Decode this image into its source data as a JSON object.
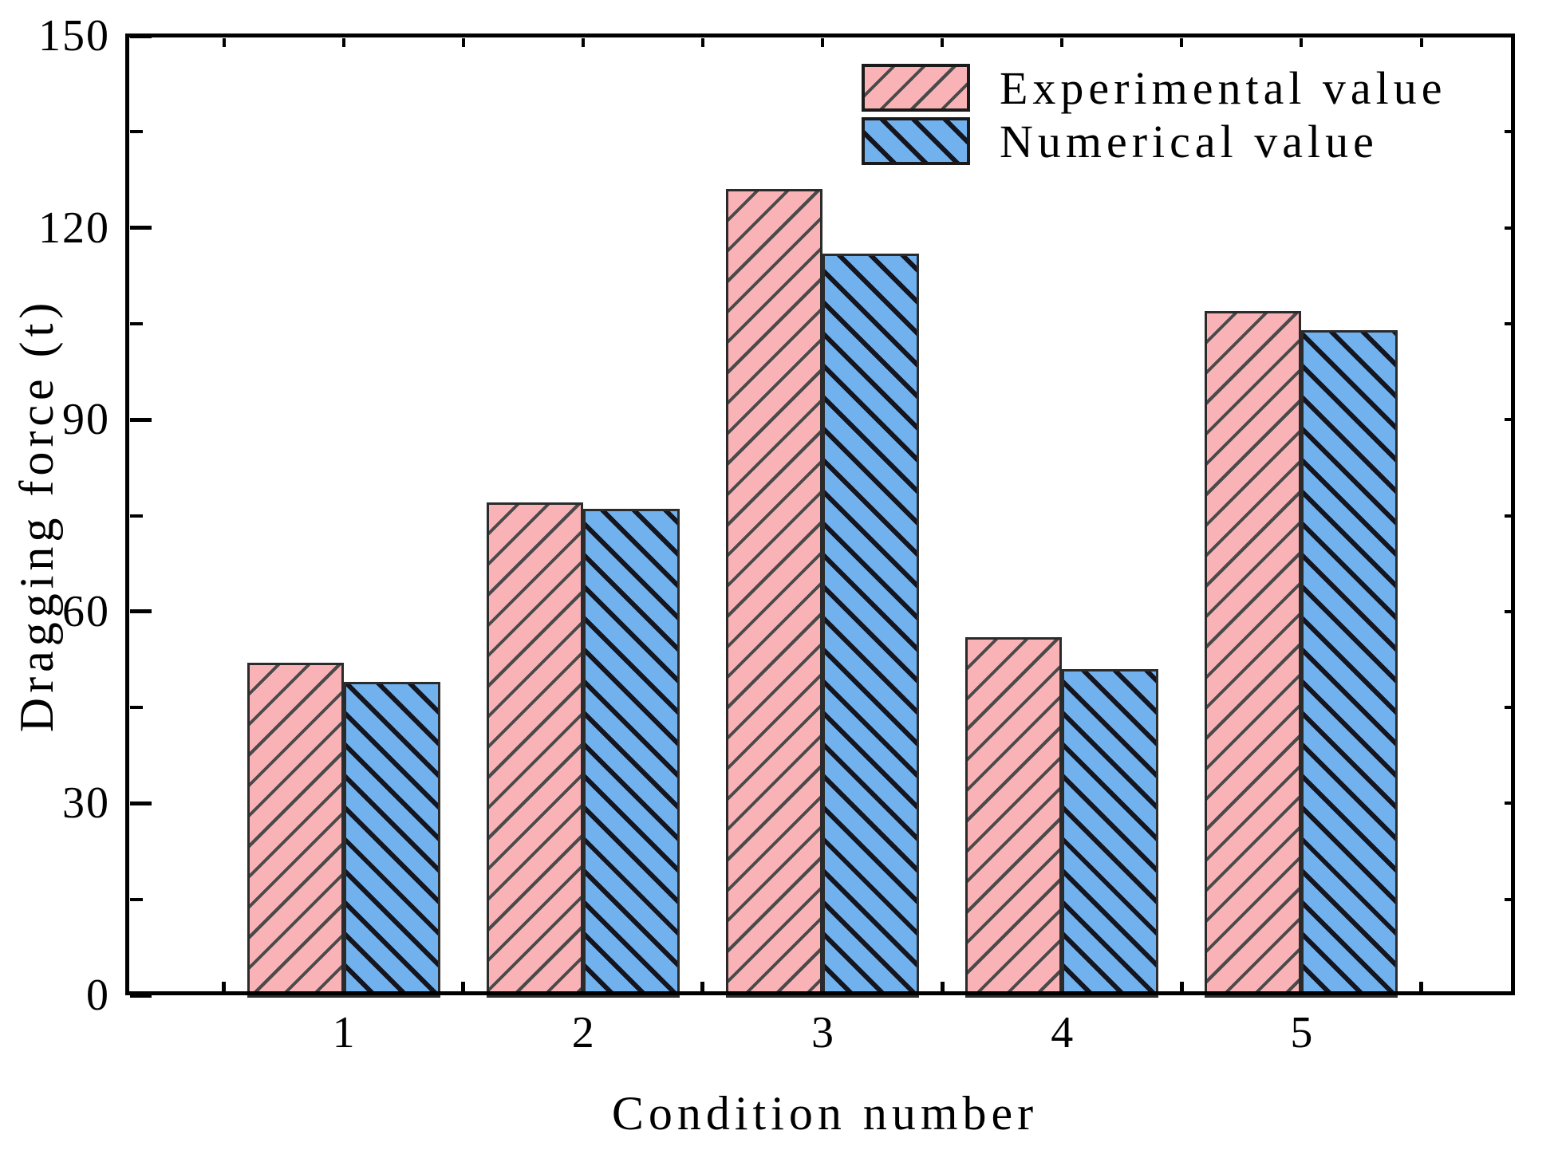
{
  "chart_data": {
    "type": "bar",
    "title": "",
    "categories": [
      "1",
      "2",
      "3",
      "4",
      "5"
    ],
    "series": [
      {
        "name": "Experimental value",
        "values": [
          52,
          77,
          126,
          56,
          107
        ],
        "fill": "#f9b3b6",
        "hatch": "/",
        "hatch_color": "#4a4a4a"
      },
      {
        "name": "Numerical value",
        "values": [
          49,
          76,
          116,
          51,
          104
        ],
        "fill": "#70b1ee",
        "hatch": "\\",
        "hatch_color": "#15151f"
      }
    ],
    "xlabel": "Condition number",
    "ylabel": "Dragging force (t)",
    "ylim": [
      0,
      150
    ],
    "y_major_step": 30,
    "y_minor_step": 15,
    "y_tick_labels": [
      "0",
      "30",
      "60",
      "90",
      "120",
      "150"
    ],
    "grid": false,
    "legend_position": "top-right",
    "axis_color": "#000000",
    "bar_border_color": "#2b2b2b",
    "background": "#ffffff"
  }
}
